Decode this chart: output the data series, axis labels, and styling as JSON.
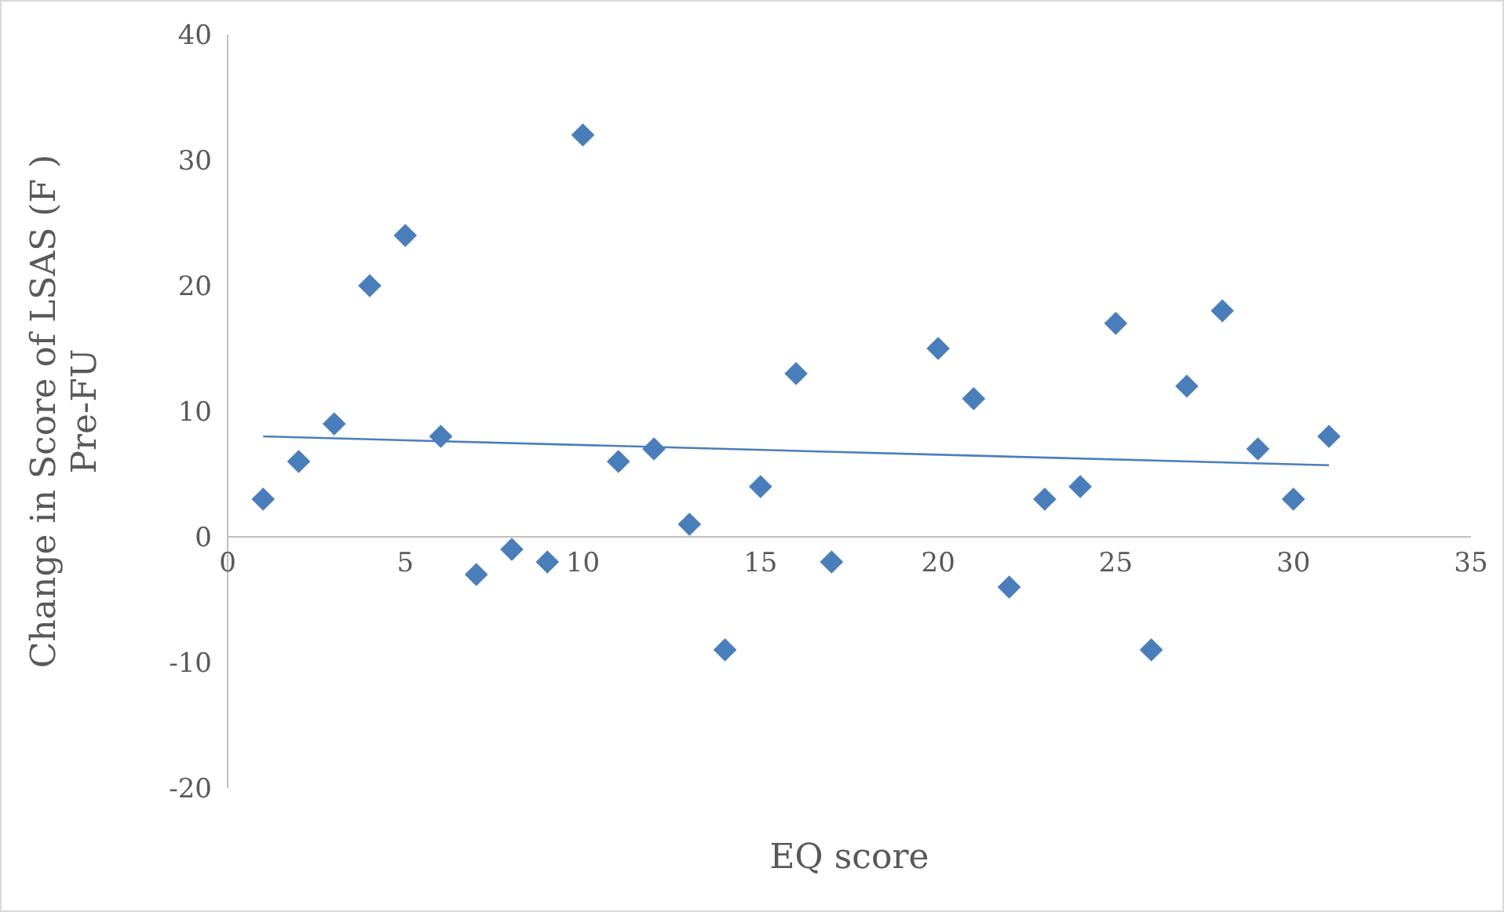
{
  "chart_data": {
    "type": "scatter",
    "xlabel": "EQ score",
    "ylabel": "Change in Score of LSAS (F ) Pre-FU",
    "xlim": [
      0,
      35
    ],
    "xticks": [
      0,
      5,
      10,
      15,
      20,
      25,
      30,
      35
    ],
    "ylim": [
      -20,
      40
    ],
    "yticks": [
      -20,
      -10,
      0,
      10,
      20,
      30,
      40
    ],
    "grid": false,
    "series": [
      {
        "marker": "diamond",
        "color": "#4a7ebb",
        "x": [
          1,
          2,
          3,
          4,
          5,
          6,
          7,
          8,
          9,
          10,
          11,
          12,
          13,
          14,
          15,
          16,
          17,
          20,
          21,
          22,
          23,
          24,
          25,
          26,
          27,
          28,
          29,
          30,
          31
        ],
        "values": [
          3,
          6,
          9,
          20,
          24,
          8,
          -3,
          -1,
          -2,
          32,
          6,
          7,
          1,
          -9,
          4,
          13,
          -2,
          15,
          11,
          -4,
          3,
          4,
          17,
          -9,
          12,
          18,
          7,
          3,
          8
        ]
      },
      {
        "type": "line",
        "color": "#4a7ebb",
        "x": [
          1,
          31
        ],
        "values": [
          8,
          5.7
        ]
      }
    ]
  }
}
